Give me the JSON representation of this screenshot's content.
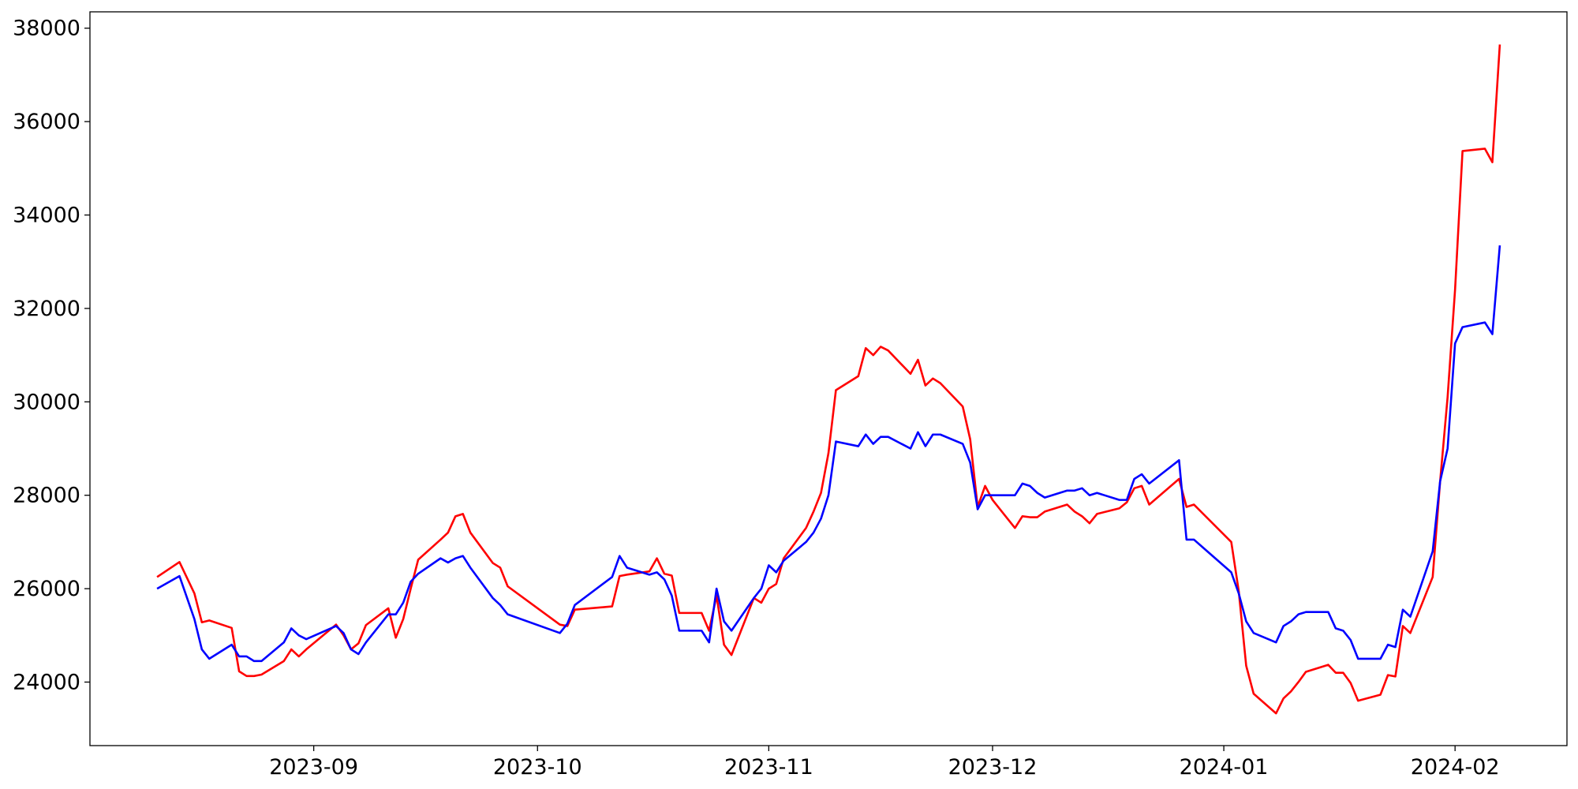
{
  "chart_data": {
    "type": "line",
    "x": [
      "2023-08-11",
      "2023-08-14",
      "2023-08-16",
      "2023-08-17",
      "2023-08-18",
      "2023-08-21",
      "2023-08-22",
      "2023-08-23",
      "2023-08-24",
      "2023-08-25",
      "2023-08-28",
      "2023-08-29",
      "2023-08-30",
      "2023-08-31",
      "2023-09-04",
      "2023-09-05",
      "2023-09-06",
      "2023-09-07",
      "2023-09-08",
      "2023-09-11",
      "2023-09-12",
      "2023-09-13",
      "2023-09-14",
      "2023-09-15",
      "2023-09-18",
      "2023-09-19",
      "2023-09-20",
      "2023-09-21",
      "2023-09-22",
      "2023-09-25",
      "2023-09-26",
      "2023-09-27",
      "2023-10-04",
      "2023-10-05",
      "2023-10-06",
      "2023-10-11",
      "2023-10-12",
      "2023-10-13",
      "2023-10-16",
      "2023-10-17",
      "2023-10-18",
      "2023-10-19",
      "2023-10-20",
      "2023-10-23",
      "2023-10-24",
      "2023-10-25",
      "2023-10-26",
      "2023-10-27",
      "2023-10-30",
      "2023-10-31",
      "2023-11-01",
      "2023-11-02",
      "2023-11-03",
      "2023-11-06",
      "2023-11-07",
      "2023-11-08",
      "2023-11-09",
      "2023-11-10",
      "2023-11-13",
      "2023-11-14",
      "2023-11-15",
      "2023-11-16",
      "2023-11-17",
      "2023-11-20",
      "2023-11-21",
      "2023-11-22",
      "2023-11-23",
      "2023-11-24",
      "2023-11-27",
      "2023-11-28",
      "2023-11-29",
      "2023-11-30",
      "2023-12-01",
      "2023-12-04",
      "2023-12-05",
      "2023-12-06",
      "2023-12-07",
      "2023-12-08",
      "2023-12-11",
      "2023-12-12",
      "2023-12-13",
      "2023-12-14",
      "2023-12-15",
      "2023-12-18",
      "2023-12-19",
      "2023-12-20",
      "2023-12-21",
      "2023-12-22",
      "2023-12-26",
      "2023-12-27",
      "2023-12-28",
      "2024-01-02",
      "2024-01-03",
      "2024-01-04",
      "2024-01-05",
      "2024-01-08",
      "2024-01-09",
      "2024-01-10",
      "2024-01-11",
      "2024-01-12",
      "2024-01-15",
      "2024-01-16",
      "2024-01-17",
      "2024-01-18",
      "2024-01-19",
      "2024-01-22",
      "2024-01-23",
      "2024-01-24",
      "2024-01-25",
      "2024-01-26",
      "2024-01-29",
      "2024-01-30",
      "2024-01-31",
      "2024-02-01",
      "2024-02-02",
      "2024-02-05",
      "2024-02-06",
      "2024-02-07"
    ],
    "series": [
      {
        "color": "#ff0000",
        "values": [
          26250,
          26570,
          25900,
          25280,
          25320,
          25160,
          24230,
          24130,
          24130,
          24160,
          24450,
          24700,
          24550,
          24700,
          25230,
          25000,
          24700,
          24830,
          25220,
          25580,
          24950,
          25350,
          26000,
          26620,
          27050,
          27200,
          27550,
          27600,
          27200,
          26550,
          26450,
          26050,
          25230,
          25200,
          25550,
          25620,
          26270,
          26300,
          26370,
          26650,
          26320,
          26280,
          25480,
          25480,
          25100,
          25850,
          24800,
          24580,
          25800,
          25700,
          26000,
          26100,
          26650,
          27300,
          27650,
          28050,
          28900,
          30250,
          30550,
          31150,
          31000,
          31180,
          31100,
          30600,
          30900,
          30350,
          30500,
          30400,
          29900,
          29200,
          27750,
          28200,
          27900,
          27300,
          27550,
          27530,
          27530,
          27650,
          27800,
          27650,
          27550,
          27400,
          27600,
          27720,
          27850,
          28150,
          28200,
          27800,
          28350,
          27750,
          27800,
          27000,
          25950,
          24350,
          23750,
          23330,
          23650,
          23800,
          24000,
          24220,
          24370,
          24200,
          24200,
          23980,
          23600,
          23730,
          24150,
          24120,
          25200,
          25050,
          26250,
          28300,
          30100,
          32400,
          35370,
          35420,
          35130,
          37650
        ]
      },
      {
        "color": "#0000ff",
        "values": [
          26000,
          26270,
          25350,
          24700,
          24500,
          24800,
          24550,
          24550,
          24450,
          24450,
          24850,
          25150,
          25000,
          24920,
          25200,
          25050,
          24700,
          24600,
          24850,
          25450,
          25450,
          25700,
          26150,
          26320,
          26650,
          26560,
          26650,
          26700,
          26450,
          25800,
          25650,
          25450,
          25050,
          25250,
          25650,
          26250,
          26700,
          26450,
          26300,
          26350,
          26200,
          25850,
          25100,
          25100,
          24850,
          26000,
          25300,
          25100,
          25800,
          26000,
          26500,
          26350,
          26600,
          27000,
          27200,
          27500,
          28000,
          29150,
          29050,
          29300,
          29100,
          29250,
          29250,
          29000,
          29350,
          29050,
          29300,
          29300,
          29100,
          28700,
          27700,
          28000,
          28000,
          28000,
          28250,
          28200,
          28050,
          27950,
          28100,
          28100,
          28150,
          28000,
          28050,
          27900,
          27900,
          28350,
          28450,
          28250,
          28750,
          27050,
          27050,
          26350,
          25900,
          25300,
          25050,
          24850,
          25200,
          25300,
          25450,
          25500,
          25500,
          25150,
          25100,
          24900,
          24500,
          24500,
          24800,
          24750,
          25550,
          25400,
          26800,
          28300,
          29000,
          31250,
          31600,
          31700,
          31450,
          33350
        ]
      }
    ],
    "xlim": [
      "2023-08-02",
      "2024-02-16"
    ],
    "xticks": [
      {
        "value": "2023-09-01",
        "label": "2023-09"
      },
      {
        "value": "2023-10-01",
        "label": "2023-10"
      },
      {
        "value": "2023-11-01",
        "label": "2023-11"
      },
      {
        "value": "2023-12-01",
        "label": "2023-12"
      },
      {
        "value": "2024-01-01",
        "label": "2024-01"
      },
      {
        "value": "2024-02-01",
        "label": "2024-02"
      }
    ],
    "ylim": [
      22640,
      38350
    ],
    "yticks": [
      24000,
      26000,
      28000,
      30000,
      32000,
      34000,
      36000,
      38000
    ],
    "grid": false
  }
}
